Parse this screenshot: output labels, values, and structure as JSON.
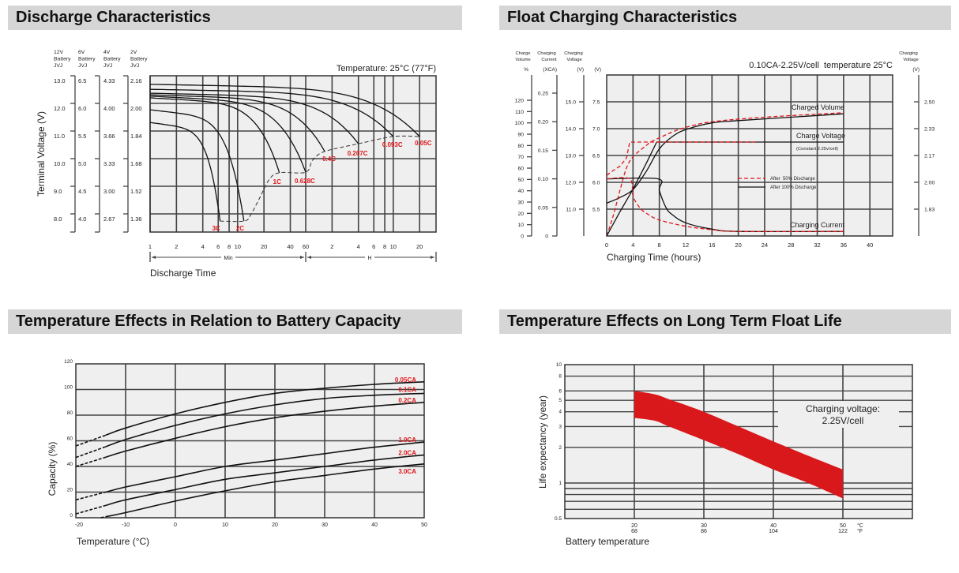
{
  "sections": {
    "discharge_title": "Discharge Characteristics",
    "float_title": "Float Charging Characteristics",
    "capacity_title": "Temperature Effects in Relation to Battery Capacity",
    "life_title": "Temperature Effects on Long Term Float Life"
  },
  "colors": {
    "series_black": "#111111",
    "series_red": "#e0161b",
    "plot_bg": "#efefef",
    "band_red": "#d9181b",
    "header_bg": "#d6d6d6"
  },
  "chart_data": [
    {
      "type": "line",
      "title": "Discharge Characteristics",
      "annotation": "Temperature: 25°C (77°F)",
      "xlabel": "Discharge Time",
      "ylabel": "Terminal Voltage (V)",
      "x_scale": "log",
      "x_unit": "min",
      "x_axis": {
        "groups": [
          {
            "label": "Min",
            "multiplier_min": 1,
            "ticks": [
              "1",
              "2",
              "4",
              "6",
              "8",
              "10",
              "20",
              "40",
              "60"
            ]
          },
          {
            "label": "H",
            "multiplier_min": 60,
            "ticks": [
              "2",
              "4",
              "6",
              "8",
              "10",
              "20"
            ]
          }
        ]
      },
      "voltage_axes": [
        {
          "header": [
            "12V",
            "Battery",
            "JVJ"
          ],
          "ticks": [
            "13.0",
            "12.0",
            "11.0",
            "10.0",
            "9.0",
            "8.0"
          ]
        },
        {
          "header": [
            "6V",
            "Battery",
            "JVJ"
          ],
          "ticks": [
            "6.5",
            "6.0",
            "5.5",
            "5.0",
            "4.5",
            "4.0"
          ]
        },
        {
          "header": [
            "4V",
            "Battery",
            "JVJ"
          ],
          "ticks": [
            "4.33",
            "4.00",
            "3.66",
            "3.33",
            "3.00",
            "2.67"
          ]
        },
        {
          "header": [
            "2V",
            "Battery",
            "JVJ"
          ],
          "ticks": [
            "2.16",
            "2.00",
            "1.84",
            "1.68",
            "1.52",
            "1.36"
          ]
        }
      ],
      "ylim_12v": [
        7.35,
        13.0
      ],
      "grid": true,
      "series": [
        {
          "name": "3C",
          "start_v": 11.31,
          "end_min": 6.3,
          "end_v": 7.74
        },
        {
          "name": "2C",
          "start_v": 11.77,
          "end_min": 11.8,
          "end_v": 7.74
        },
        {
          "name": "1C",
          "start_v": 12.2,
          "end_min": 30,
          "end_v": 9.49
        },
        {
          "name": "0.628C",
          "start_v": 12.26,
          "end_min": 60,
          "end_v": 9.51
        },
        {
          "name": "0.4C",
          "start_v": 12.31,
          "end_min": 99,
          "end_v": 10.26
        },
        {
          "name": "0.207C",
          "start_v": 12.37,
          "end_min": 240,
          "end_v": 10.54
        },
        {
          "name": "0.093C",
          "start_v": 12.51,
          "end_min": 600,
          "end_v": 10.8
        },
        {
          "name": "0.05C",
          "start_v": 12.69,
          "end_min": 1200,
          "end_v": 10.8
        }
      ],
      "cutoff_line": [
        [
          6.3,
          7.74
        ],
        [
          11.8,
          7.74
        ],
        [
          14,
          7.95
        ],
        [
          18,
          8.6
        ],
        [
          23,
          9.25
        ],
        [
          30,
          9.49
        ],
        [
          60,
          9.51
        ],
        [
          72,
          9.95
        ],
        [
          99,
          10.26
        ],
        [
          240,
          10.54
        ],
        [
          600,
          10.8
        ],
        [
          1200,
          10.8
        ]
      ]
    },
    {
      "type": "line",
      "title": "0.10CA-2.25V/cell  temperature 25°C",
      "xlabel": "Charging Time (hours)",
      "x_ticks": [
        "0",
        "4",
        "8",
        "12",
        "16",
        "20",
        "24",
        "28",
        "32",
        "36",
        "40"
      ],
      "xlim": [
        0,
        43.5
      ],
      "axes": {
        "volume": {
          "header": [
            "Charge",
            "Volume",
            "%"
          ],
          "ticks": [
            "0",
            "10",
            "20",
            "30",
            "40",
            "50",
            "60",
            "70",
            "80",
            "90",
            "100",
            "110",
            "120"
          ]
        },
        "current": {
          "header": [
            "Charging",
            "Current",
            "(XCA)"
          ],
          "ticks": [
            "0",
            "0.05",
            "0.10",
            "0.15",
            "0.20",
            "0.25"
          ]
        },
        "voltage_12v": {
          "header": [
            "Charging",
            "Voltage",
            "(V)"
          ],
          "ticks": [
            "15.0",
            "14.0",
            "13.0",
            "12.0",
            "11.0"
          ]
        },
        "voltage_6v": {
          "header": "(V)",
          "ticks": [
            "7.5",
            "7.0",
            "6.5",
            "6.0",
            "5.5"
          ]
        },
        "voltage_cell": {
          "header": [
            "Charging",
            "Voltage",
            "(V)"
          ],
          "ticks": [
            "2.50",
            "2.33",
            "2.17",
            "2.00",
            "1.83"
          ]
        }
      },
      "labels": {
        "charged_volume": "Charged Volume",
        "charge_voltage": "Charge Voltage",
        "charge_voltage_note": "(Constant 2.25v/cell)",
        "charging_current": "Charging Current"
      },
      "legend": [
        {
          "name": "After  50% Discharge",
          "style": "dashed",
          "color": "#e0161b"
        },
        {
          "name": "After 100% Discharge",
          "style": "solid",
          "color": "#111111"
        }
      ],
      "grid": true,
      "series": [
        {
          "quantity": "volume",
          "case": "After 100% Discharge",
          "unit": "%",
          "points": [
            [
              0,
              29
            ],
            [
              2,
              34
            ],
            [
              4,
              41
            ],
            [
              6,
              57
            ],
            [
              8,
              77
            ],
            [
              10,
              88
            ],
            [
              12,
              94
            ],
            [
              16,
              100
            ],
            [
              20,
              102
            ],
            [
              28,
              105
            ],
            [
              36,
              108
            ]
          ]
        },
        {
          "quantity": "volume",
          "case": "After  50% Discharge",
          "unit": "%",
          "points": [
            [
              0,
              0
            ],
            [
              1,
              18
            ],
            [
              2,
              40
            ],
            [
              3,
              60
            ],
            [
              4,
              70
            ],
            [
              6,
              80
            ],
            [
              7,
              84
            ],
            [
              10,
              92
            ],
            [
              12,
              96
            ],
            [
              16,
              101
            ],
            [
              24,
              105
            ],
            [
              36,
              109
            ]
          ]
        },
        {
          "quantity": "voltage",
          "case": "After 100% Discharge",
          "unit": "V",
          "points": [
            [
              0,
              5.0
            ],
            [
              2,
              5.45
            ],
            [
              4,
              5.87
            ],
            [
              6,
              6.35
            ],
            [
              7.6,
              6.75
            ],
            [
              36,
              6.75
            ]
          ]
        },
        {
          "quantity": "voltage",
          "case": "After  50% Discharge",
          "unit": "V",
          "points": [
            [
              0,
              6.13
            ],
            [
              1,
              6.22
            ],
            [
              2,
              6.3
            ],
            [
              3,
              6.45
            ],
            [
              3.5,
              6.75
            ],
            [
              22.6,
              6.75
            ]
          ]
        },
        {
          "quantity": "current",
          "case": "After 100% Discharge",
          "unit": "CA",
          "points": [
            [
              0,
              0.1
            ],
            [
              7.8,
              0.1
            ],
            [
              8,
              0.08
            ],
            [
              9,
              0.05
            ],
            [
              10,
              0.037
            ],
            [
              12,
              0.023
            ],
            [
              16,
              0.012
            ],
            [
              20,
              0.008
            ],
            [
              36,
              0.008
            ]
          ]
        },
        {
          "quantity": "current",
          "case": "After  50% Discharge",
          "unit": "CA",
          "points": [
            [
              0,
              0.1
            ],
            [
              3.5,
              0.1
            ],
            [
              4,
              0.07
            ],
            [
              5,
              0.05
            ],
            [
              6,
              0.04
            ],
            [
              8,
              0.028
            ],
            [
              12,
              0.017
            ],
            [
              16,
              0.011
            ],
            [
              20,
              0.008
            ],
            [
              36,
              0.008
            ]
          ]
        }
      ]
    },
    {
      "type": "line",
      "title": "Temperature Effects in Relation to Battery Capacity",
      "xlabel": "Temperature (°C)",
      "ylabel": "Capacity (%)",
      "xlim": [
        -20,
        50
      ],
      "ylim": [
        0,
        120
      ],
      "x_ticks": [
        "-20",
        "-10",
        "0",
        "10",
        "20",
        "30",
        "40",
        "50"
      ],
      "y_ticks": [
        "0",
        "20",
        "40",
        "60",
        "80",
        "100",
        "120"
      ],
      "grid": true,
      "extrapolated_below_c": -14,
      "series": [
        {
          "name": "0.05CA",
          "points": [
            [
              -20,
              56
            ],
            [
              -10,
              70
            ],
            [
              0,
              81
            ],
            [
              10,
              90
            ],
            [
              20,
              97
            ],
            [
              30,
              101
            ],
            [
              40,
              104
            ],
            [
              50,
              106
            ]
          ]
        },
        {
          "name": "0.1CA",
          "points": [
            [
              -20,
              47
            ],
            [
              -10,
              61
            ],
            [
              0,
              72
            ],
            [
              10,
              81
            ],
            [
              20,
              88
            ],
            [
              30,
              93
            ],
            [
              40,
              95.5
            ],
            [
              50,
              97
            ]
          ]
        },
        {
          "name": "0.2CA",
          "points": [
            [
              -20,
              40
            ],
            [
              -10,
              52
            ],
            [
              0,
              62
            ],
            [
              10,
              71
            ],
            [
              20,
              78
            ],
            [
              30,
              83
            ],
            [
              40,
              87
            ],
            [
              50,
              90
            ]
          ]
        },
        {
          "name": "1.0CA",
          "points": [
            [
              -20,
              14
            ],
            [
              -10,
              24
            ],
            [
              0,
              32
            ],
            [
              10,
              40
            ],
            [
              20,
              45
            ],
            [
              30,
              50
            ],
            [
              40,
              55
            ],
            [
              50,
              59
            ]
          ]
        },
        {
          "name": "2.0CA",
          "points": [
            [
              -20,
              3
            ],
            [
              -10,
              14
            ],
            [
              0,
              22
            ],
            [
              10,
              30
            ],
            [
              20,
              35
            ],
            [
              30,
              40
            ],
            [
              40,
              45
            ],
            [
              50,
              49
            ]
          ]
        },
        {
          "name": "3.0CA",
          "points": [
            [
              -15,
              0
            ],
            [
              -10,
              4
            ],
            [
              0,
              13
            ],
            [
              10,
              21
            ],
            [
              20,
              28
            ],
            [
              30,
              33
            ],
            [
              40,
              38
            ],
            [
              50,
              42
            ]
          ]
        }
      ]
    },
    {
      "type": "area",
      "title": "Temperature Effects on Long Term Float Life",
      "xlabel": "Battery temperature",
      "ylabel": "Life expectancy (year)",
      "y_scale": "log",
      "ylim": [
        0.5,
        10
      ],
      "xlim": [
        10,
        60
      ],
      "y_ticks": [
        "10",
        "8",
        "6",
        "5",
        "4",
        "3",
        "2",
        "1",
        "0.5"
      ],
      "y_gridlines": [
        8,
        6,
        5,
        4,
        3,
        2,
        1,
        0.9,
        0.8,
        0.7,
        0.6
      ],
      "x_ticks": [
        {
          "c": "20",
          "f": "68"
        },
        {
          "c": "30",
          "f": "86"
        },
        {
          "c": "40",
          "f": "104"
        },
        {
          "c": "50",
          "f": "122"
        }
      ],
      "x_units": {
        "c": "°C",
        "f": "°F"
      },
      "annotation": [
        "Charging voltage:",
        "2.25V/cell"
      ],
      "grid": true,
      "band": {
        "upper": [
          [
            20,
            6.0
          ],
          [
            23,
            5.6
          ],
          [
            25,
            5.1
          ],
          [
            30,
            4.0
          ],
          [
            35,
            3.0
          ],
          [
            40,
            2.25
          ],
          [
            45,
            1.7
          ],
          [
            50,
            1.3
          ]
        ],
        "lower": [
          [
            20,
            3.55
          ],
          [
            23,
            3.35
          ],
          [
            25,
            3.0
          ],
          [
            30,
            2.3
          ],
          [
            35,
            1.75
          ],
          [
            40,
            1.3
          ],
          [
            45,
            1.0
          ],
          [
            50,
            0.74
          ]
        ]
      }
    }
  ]
}
